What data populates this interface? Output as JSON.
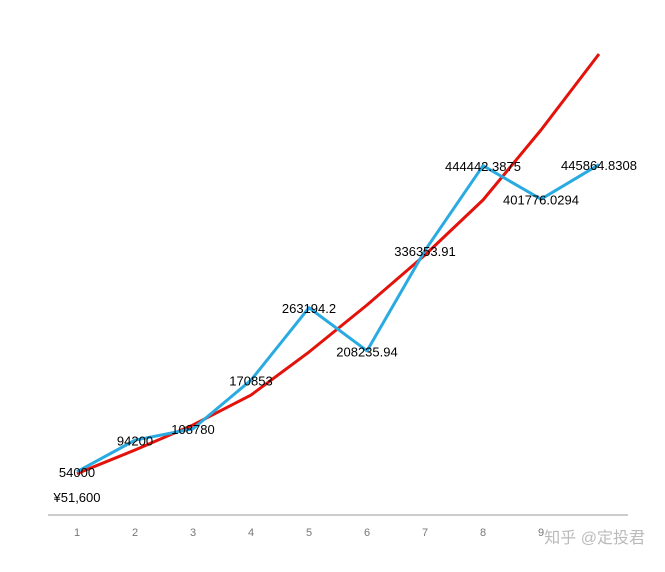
{
  "chart_data": {
    "type": "line",
    "categories": [
      "1",
      "2",
      "3",
      "4",
      "5",
      "6",
      "7",
      "8",
      "9",
      null
    ],
    "series": [
      {
        "color": "#e3120b",
        "values": [
          51600,
          81700,
          113600,
          151800,
          206700,
          266700,
          330500,
          400700,
          490000,
          587000
        ],
        "value_labels": [
          "¥51,600",
          null,
          null,
          null,
          null,
          null,
          null,
          null,
          null,
          null
        ]
      },
      {
        "color": "#29abe2",
        "values": [
          54000,
          94200,
          108780,
          170853,
          263194.2,
          208235.94,
          336353.91,
          444442.3875,
          401776.0294,
          445864.8308
        ]
      }
    ],
    "watermark": "知乎 @定投君"
  }
}
